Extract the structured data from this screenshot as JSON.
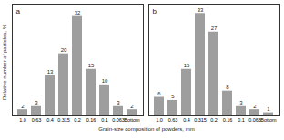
{
  "chart_data": [
    {
      "type": "bar",
      "title": "a",
      "y_label": "Relative number of particles, %",
      "x_label": "Grain-size composition of powders, mm",
      "categories": [
        "1.0",
        "0.63",
        "0.4",
        "0.315",
        "0.2",
        "0.16",
        "0.1",
        "0.063",
        "Bottom"
      ],
      "values": [
        2,
        3,
        13,
        20,
        32,
        15,
        10,
        3,
        2
      ],
      "color": "#9e9e9e",
      "ylim": [
        0,
        36
      ],
      "data_labels": true,
      "tick_labels": "x"
    },
    {
      "type": "bar",
      "title": "b",
      "categories": [
        "1.0",
        "0.63",
        "0.4",
        "0.315",
        "0.2",
        "0.16",
        "0.1",
        "0.063",
        "Bottom"
      ],
      "values": [
        6,
        5,
        15,
        33,
        27,
        8,
        3,
        2,
        1
      ],
      "color": "#9e9e9e",
      "ylim": [
        0,
        36
      ],
      "data_labels": true,
      "tick_labels": "x"
    }
  ]
}
